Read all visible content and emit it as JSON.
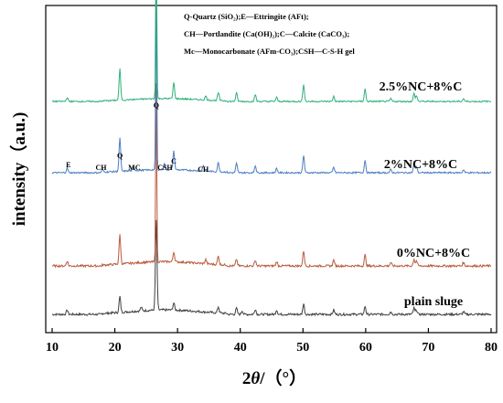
{
  "chart_data": {
    "type": "line",
    "xlabel_prefix": "2",
    "xlabel_theta": "θ",
    "xlabel_suffix": "/（°）",
    "ylabel": "intensity（a.u.)",
    "xlim": [
      10,
      80
    ],
    "xticks": [
      "10",
      "20",
      "30",
      "40",
      "50",
      "60",
      "70",
      "80"
    ],
    "grid": false,
    "legend_lines": [
      "Q-Quartz (SiO₂);E—Ettringite (AFt);",
      "CH—Portlandite (Ca(OH)₂);C—Calcite (CaCO₃);",
      "Mc—Monocarbonate (AFm-CO₃);CSH—C-S-H gel"
    ],
    "series": [
      {
        "name": "plain sluge",
        "color": "#3f3f3f",
        "peaks": [
          [
            12.4,
            0.05
          ],
          [
            20.8,
            0.18
          ],
          [
            24.2,
            0.04
          ],
          [
            26.6,
            1.0
          ],
          [
            29.4,
            0.08
          ],
          [
            36.5,
            0.07
          ],
          [
            39.4,
            0.07
          ],
          [
            40.3,
            0.04
          ],
          [
            42.4,
            0.06
          ],
          [
            45.8,
            0.05
          ],
          [
            50.1,
            0.12
          ],
          [
            54.9,
            0.05
          ],
          [
            59.9,
            0.09
          ],
          [
            64.0,
            0.03
          ],
          [
            67.7,
            0.07
          ],
          [
            68.1,
            0.05
          ],
          [
            75.6,
            0.03
          ]
        ]
      },
      {
        "name": "0%NC+8%C",
        "color": "#b85a3c",
        "peaks": [
          [
            12.4,
            0.06
          ],
          [
            20.8,
            0.35
          ],
          [
            26.6,
            2.1
          ],
          [
            29.4,
            0.12
          ],
          [
            34.5,
            0.05
          ],
          [
            36.5,
            0.1
          ],
          [
            39.4,
            0.08
          ],
          [
            42.4,
            0.07
          ],
          [
            45.8,
            0.05
          ],
          [
            50.1,
            0.18
          ],
          [
            54.9,
            0.07
          ],
          [
            59.9,
            0.13
          ],
          [
            64.0,
            0.04
          ],
          [
            67.7,
            0.08
          ],
          [
            68.1,
            0.06
          ],
          [
            75.6,
            0.04
          ]
        ]
      },
      {
        "name": "2%NC+8%C",
        "color": "#4a7ec0",
        "peaks": [
          [
            9.1,
            0.07
          ],
          [
            12.4,
            0.08
          ],
          [
            18.0,
            0.05
          ],
          [
            20.8,
            0.55
          ],
          [
            23.0,
            0.06
          ],
          [
            26.6,
            2.8
          ],
          [
            27.9,
            0.1
          ],
          [
            29.4,
            0.3
          ],
          [
            34.1,
            0.09
          ],
          [
            36.5,
            0.15
          ],
          [
            39.4,
            0.15
          ],
          [
            42.4,
            0.12
          ],
          [
            45.8,
            0.07
          ],
          [
            50.1,
            0.28
          ],
          [
            54.9,
            0.09
          ],
          [
            59.9,
            0.2
          ],
          [
            64.0,
            0.05
          ],
          [
            67.7,
            0.13
          ],
          [
            68.1,
            0.1
          ],
          [
            75.6,
            0.05
          ]
        ]
      },
      {
        "name": "2.5%NC+8%C",
        "color": "#2eb07a",
        "peaks": [
          [
            12.4,
            0.07
          ],
          [
            20.8,
            0.55
          ],
          [
            26.6,
            3.0
          ],
          [
            29.4,
            0.28
          ],
          [
            34.5,
            0.07
          ],
          [
            36.5,
            0.14
          ],
          [
            39.4,
            0.15
          ],
          [
            42.4,
            0.12
          ],
          [
            45.8,
            0.07
          ],
          [
            50.1,
            0.3
          ],
          [
            54.9,
            0.09
          ],
          [
            59.9,
            0.22
          ],
          [
            64.0,
            0.05
          ],
          [
            67.7,
            0.14
          ],
          [
            68.1,
            0.1
          ],
          [
            75.6,
            0.05
          ]
        ]
      }
    ],
    "peak_labels": [
      {
        "text": "E",
        "x": 12.6
      },
      {
        "text": "CH",
        "x": 17.8
      },
      {
        "text": "Q",
        "x": 20.8
      },
      {
        "text": "MC",
        "x": 23.1
      },
      {
        "text": "Q",
        "x": 26.6
      },
      {
        "text": "CSH",
        "x": 28.0
      },
      {
        "text": "C",
        "x": 29.4
      },
      {
        "text": "CH",
        "x": 34.1
      }
    ]
  }
}
